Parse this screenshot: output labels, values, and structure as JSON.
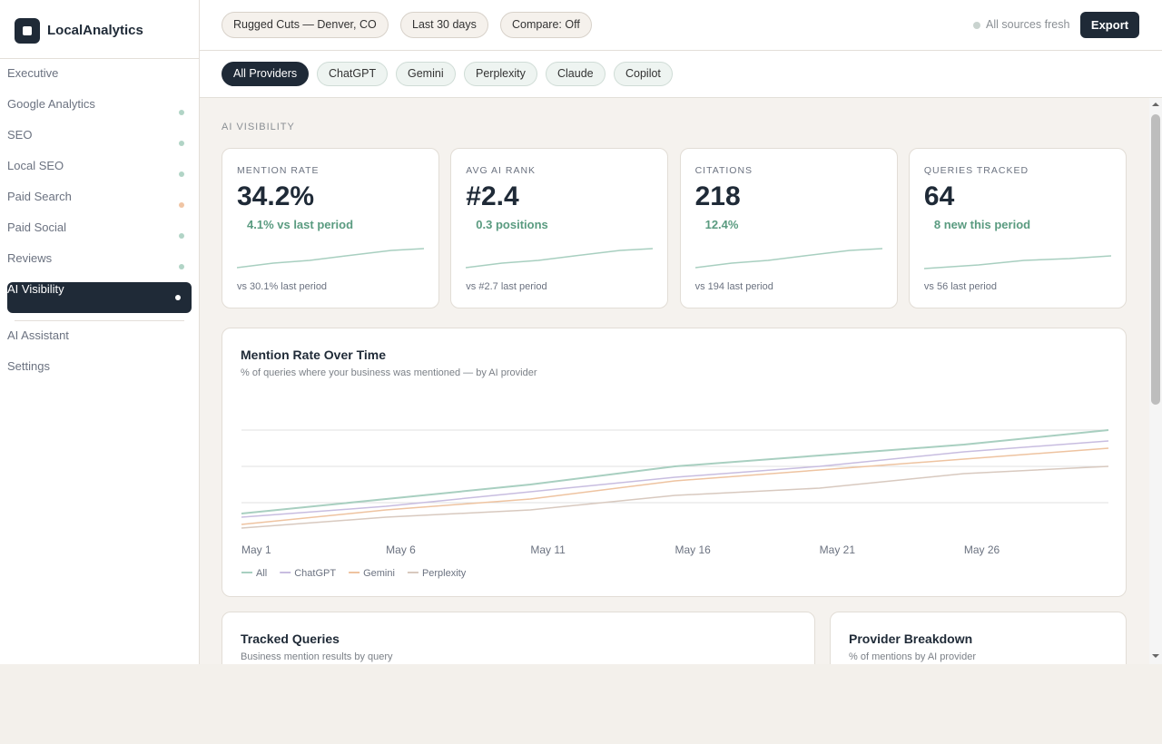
{
  "brand": "LocalAnalytics",
  "sidebar": {
    "nav": [
      {
        "label": "Executive"
      },
      {
        "label": "Google Analytics",
        "dot": "#a8cfc0"
      },
      {
        "label": "SEO",
        "dot": "#a8cfc0"
      },
      {
        "label": "Local SEO",
        "dot": "#a8cfc0"
      },
      {
        "label": "Paid Search",
        "dot": "#eebf9a"
      },
      {
        "label": "Paid Social",
        "dot": "#a8cfc0"
      },
      {
        "label": "Reviews",
        "dot": "#a8cfc0"
      },
      {
        "label": "AI Visibility",
        "dot": "#ffffff",
        "active": true
      }
    ],
    "footer_nav": [
      "AI Assistant",
      "Settings"
    ]
  },
  "topbar": {
    "filters": [
      "Rugged Cuts — Denver, CO",
      "Last 30 days",
      "Compare: Off"
    ],
    "status": "All sources fresh",
    "export": "Export"
  },
  "providers": [
    "All Providers",
    "ChatGPT",
    "Gemini",
    "Perplexity",
    "Claude",
    "Copilot"
  ],
  "section_label": "AI VISIBILITY",
  "kpis": [
    {
      "label": "MENTION RATE",
      "value": "34.2%",
      "delta": "4.1% vs last period",
      "compare": "vs 30.1% last period"
    },
    {
      "label": "AVG AI RANK",
      "value": "#2.4",
      "delta": "0.3 positions",
      "compare": "vs #2.7 last period"
    },
    {
      "label": "CITATIONS",
      "value": "218",
      "delta": "12.4%",
      "compare": "vs 194 last period"
    },
    {
      "label": "QUERIES TRACKED",
      "value": "64",
      "delta": "8 new this period",
      "compare": "vs 56 last period"
    }
  ],
  "chart_data": {
    "type": "line",
    "title": "Mention Rate Over Time",
    "subtitle": "% of queries where your business was mentioned — by AI provider",
    "categories": [
      "May 1",
      "May 6",
      "May 11",
      "May 16",
      "May 21",
      "May 26",
      null
    ],
    "series": [
      {
        "name": "All",
        "color": "#a8cfc0",
        "values": [
          17,
          21,
          25,
          30,
          33,
          36,
          40
        ]
      },
      {
        "name": "ChatGPT",
        "color": "#c8bde0",
        "values": [
          16,
          19,
          23,
          27,
          30,
          34,
          37
        ]
      },
      {
        "name": "Gemini",
        "color": "#eec3a0",
        "values": [
          14,
          18,
          21,
          26,
          29,
          32,
          35
        ]
      },
      {
        "name": "Perplexity",
        "color": "#d8c9bf",
        "values": [
          13,
          16,
          18,
          22,
          24,
          28,
          30
        ]
      }
    ],
    "ylim": [
      12,
      47
    ],
    "yticks": [
      20,
      30,
      40
    ],
    "grid": true
  },
  "panels": [
    {
      "title": "Tracked Queries",
      "subtitle": "Business mention results by query"
    },
    {
      "title": "Provider Breakdown",
      "subtitle": "% of mentions by AI provider"
    }
  ]
}
